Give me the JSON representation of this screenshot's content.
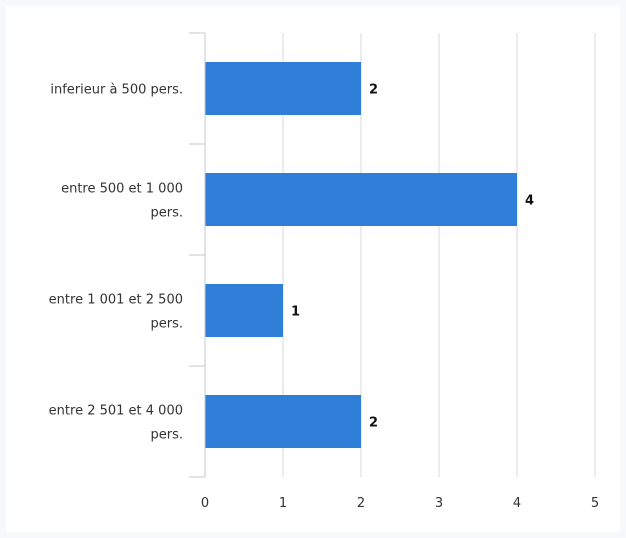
{
  "chart_data": {
    "type": "bar",
    "orientation": "horizontal",
    "categories": [
      [
        "inferieur à 500 pers."
      ],
      [
        "entre 500 et 1 000",
        "pers."
      ],
      [
        "entre 1 001 et 2 500",
        "pers."
      ],
      [
        "entre 2 501 et 4 000",
        "pers."
      ]
    ],
    "values": [
      2,
      4,
      1,
      2
    ],
    "data_labels": [
      "2",
      "4",
      "1",
      "2"
    ],
    "xticks": [
      "0",
      "1",
      "2",
      "3",
      "4",
      "5"
    ],
    "xlim": [
      0,
      5
    ],
    "title": "",
    "xlabel": "",
    "ylabel": "",
    "grid": true,
    "bar_color": "#2f7ed8",
    "grid_color": "#d6d9dc"
  }
}
